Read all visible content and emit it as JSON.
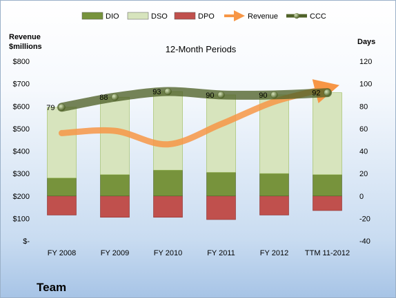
{
  "chart_data": {
    "type": "bar",
    "title": "12-Month Periods",
    "footer": "Team",
    "categories": [
      "FY 2008",
      "FY 2009",
      "FY 2010",
      "FY 2011",
      "FY 2012",
      "TTM 11-2012"
    ],
    "y_left": {
      "label_line1": "Revenue",
      "label_line2": "$millions",
      "range": [
        0,
        800
      ],
      "ticks": [
        0,
        100,
        200,
        300,
        400,
        500,
        600,
        700,
        800
      ],
      "tick_labels": [
        "$-",
        "$100",
        "$200",
        "$300",
        "$400",
        "$500",
        "$600",
        "$700",
        "$800"
      ]
    },
    "y_right": {
      "label": "Days",
      "range": [
        -40,
        120
      ],
      "ticks": [
        -40,
        -20,
        0,
        20,
        40,
        60,
        80,
        100,
        120
      ],
      "tick_labels": [
        "-40",
        "-20",
        "0",
        "20",
        "40",
        "60",
        "80",
        "100",
        "120"
      ]
    },
    "series": [
      {
        "name": "DIO",
        "axis": "days",
        "kind": "bar",
        "color": "#77933c",
        "values": [
          16,
          19,
          23,
          21,
          20,
          19
        ]
      },
      {
        "name": "DSO",
        "axis": "days",
        "kind": "bar",
        "color": "#d7e4bd",
        "values": [
          63,
          69,
          70,
          69,
          70,
          73
        ]
      },
      {
        "name": "DPO",
        "axis": "days",
        "kind": "bar",
        "color": "#c0504d",
        "values": [
          -17,
          -19,
          -19,
          -21,
          -17,
          -13
        ]
      },
      {
        "name": "Revenue",
        "axis": "revenue",
        "kind": "line",
        "color": "#f79646",
        "values": [
          480,
          490,
          430,
          520,
          620,
          680
        ]
      },
      {
        "name": "CCC",
        "axis": "days",
        "kind": "line",
        "color": "#4f6228",
        "values": [
          79,
          88,
          93,
          90,
          90,
          92
        ],
        "data_labels": [
          "79",
          "88",
          "93",
          "90",
          "90",
          "92"
        ]
      }
    ],
    "legend_position": "top",
    "grid": false
  }
}
